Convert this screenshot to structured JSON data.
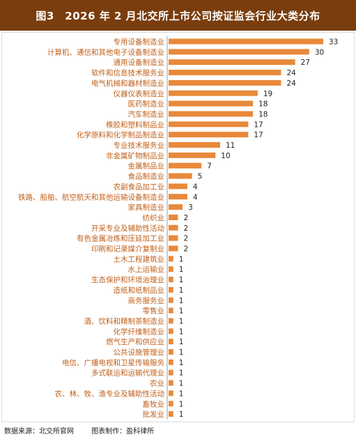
{
  "title": "图3　2026 年 2 月北交所上市公司按证监会行业大类分布",
  "footer": {
    "source": "数据来源：北交所官网",
    "maker": "图表制作：盈科律所"
  },
  "colors": {
    "bar": "#e8893a",
    "title_bg": "#7a3d0d",
    "label": "#c0601a",
    "value": "#222222",
    "axis": "#9a9a9a"
  },
  "chart_data": {
    "type": "bar",
    "orientation": "horizontal",
    "categories": [
      "专用设备制造业",
      "计算机、通信和其他电子设备制造业",
      "通用设备制造业",
      "软件和信息技术服务业",
      "电气机械和器材制造业",
      "仪器仪表制造业",
      "医药制造业",
      "汽车制造业",
      "橡胶和塑料制品业",
      "化学原料和化学制品制造业",
      "专业技术服务业",
      "非金属矿物制品业",
      "金属制品业",
      "食品制造业",
      "农副食品加工业",
      "铁路、船舶、航空航天和其他运输设备制造业",
      "家具制造业",
      "纺织业",
      "开采专业及辅助性活动",
      "有色金属冶炼和压延加工业",
      "印刷和记录媒介复制业",
      "土木工程建筑业",
      "水上运输业",
      "生态保护和环境治理业",
      "造纸和纸制品业",
      "商务服务业",
      "零售业",
      "酒、饮料和精制茶制造业",
      "化学纤维制造业",
      "燃气生产和供应业",
      "公共设施管理业",
      "电信、广播电视和卫星传输服务",
      "多式联运和运输代理业",
      "农业",
      "农、林、牧、渔专业及辅助性活动",
      "畜牧业",
      "批发业"
    ],
    "values": [
      33,
      30,
      27,
      24,
      24,
      19,
      18,
      18,
      17,
      17,
      11,
      10,
      7,
      5,
      4,
      4,
      3,
      2,
      2,
      2,
      2,
      1,
      1,
      1,
      1,
      1,
      1,
      1,
      1,
      1,
      1,
      1,
      1,
      1,
      1,
      1,
      1
    ],
    "xlim": [
      0,
      33
    ],
    "data_labels": true,
    "grid": false,
    "legend": "none"
  }
}
